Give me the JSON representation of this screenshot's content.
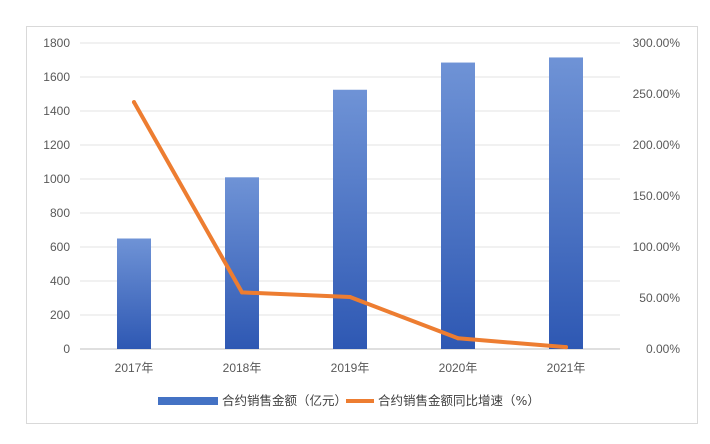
{
  "chart_data": {
    "type": "bar",
    "categories": [
      "2017年",
      "2018年",
      "2019年",
      "2020年",
      "2021年"
    ],
    "series": [
      {
        "name": "合约销售金额（亿元）",
        "type": "bar",
        "axis": "left",
        "color": "#4472C4",
        "values": [
          650,
          1010,
          1525,
          1685,
          1715
        ]
      },
      {
        "name": "合约销售金额同比增速（%）",
        "type": "line",
        "axis": "right",
        "color": "#ED7D31",
        "values": [
          242.0,
          55.5,
          51.0,
          10.5,
          1.8
        ]
      }
    ],
    "y_left": {
      "min": 0,
      "max": 1800,
      "step": 200,
      "ticks": [
        "0",
        "200",
        "400",
        "600",
        "800",
        "1000",
        "1200",
        "1400",
        "1600",
        "1800"
      ]
    },
    "y_right": {
      "min": 0,
      "max": 300,
      "step": 50,
      "ticks": [
        "0.00%",
        "50.00%",
        "100.00%",
        "150.00%",
        "200.00%",
        "250.00%",
        "300.00%"
      ]
    },
    "grid": true,
    "legend_position": "bottom",
    "title": "",
    "xlabel": "",
    "ylabel": ""
  }
}
